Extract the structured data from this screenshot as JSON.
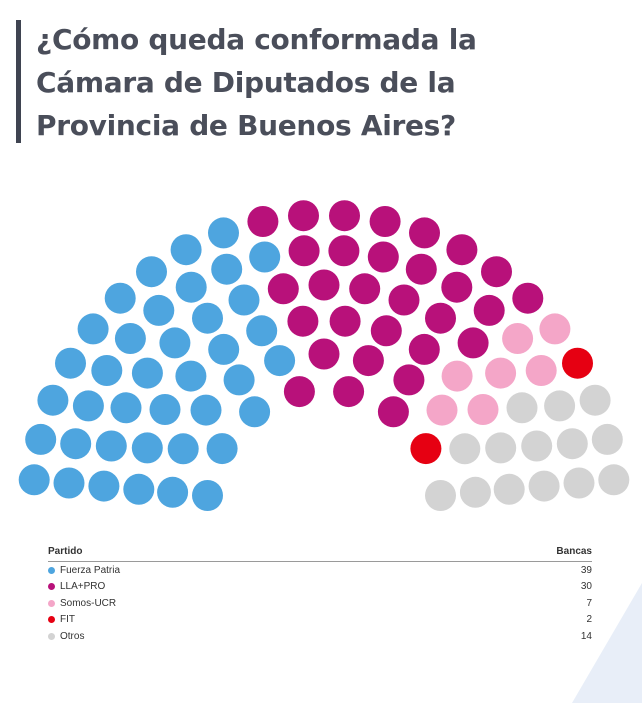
{
  "title": "¿Cómo queda conformada la Cámara de Diputados de la Provincia de Buenos Aires?",
  "legend": {
    "col_party": "Partido",
    "col_seats": "Bancas"
  },
  "chart_data": {
    "type": "parliament",
    "title": "¿Cómo queda conformada la Cámara de Diputados de la Provincia de Buenos Aires?",
    "total_seats": 92,
    "parties": [
      {
        "name": "Fuerza Patria",
        "seats": 39,
        "color": "#4ea5df"
      },
      {
        "name": "LLA+PRO",
        "seats": 30,
        "color": "#b8117a"
      },
      {
        "name": "Somos-UCR",
        "seats": 7,
        "color": "#f4a6c8"
      },
      {
        "name": "FIT",
        "seats": 2,
        "color": "#e60012"
      },
      {
        "name": "Otros",
        "seats": 14,
        "color": "#d3d3d3"
      }
    ]
  }
}
